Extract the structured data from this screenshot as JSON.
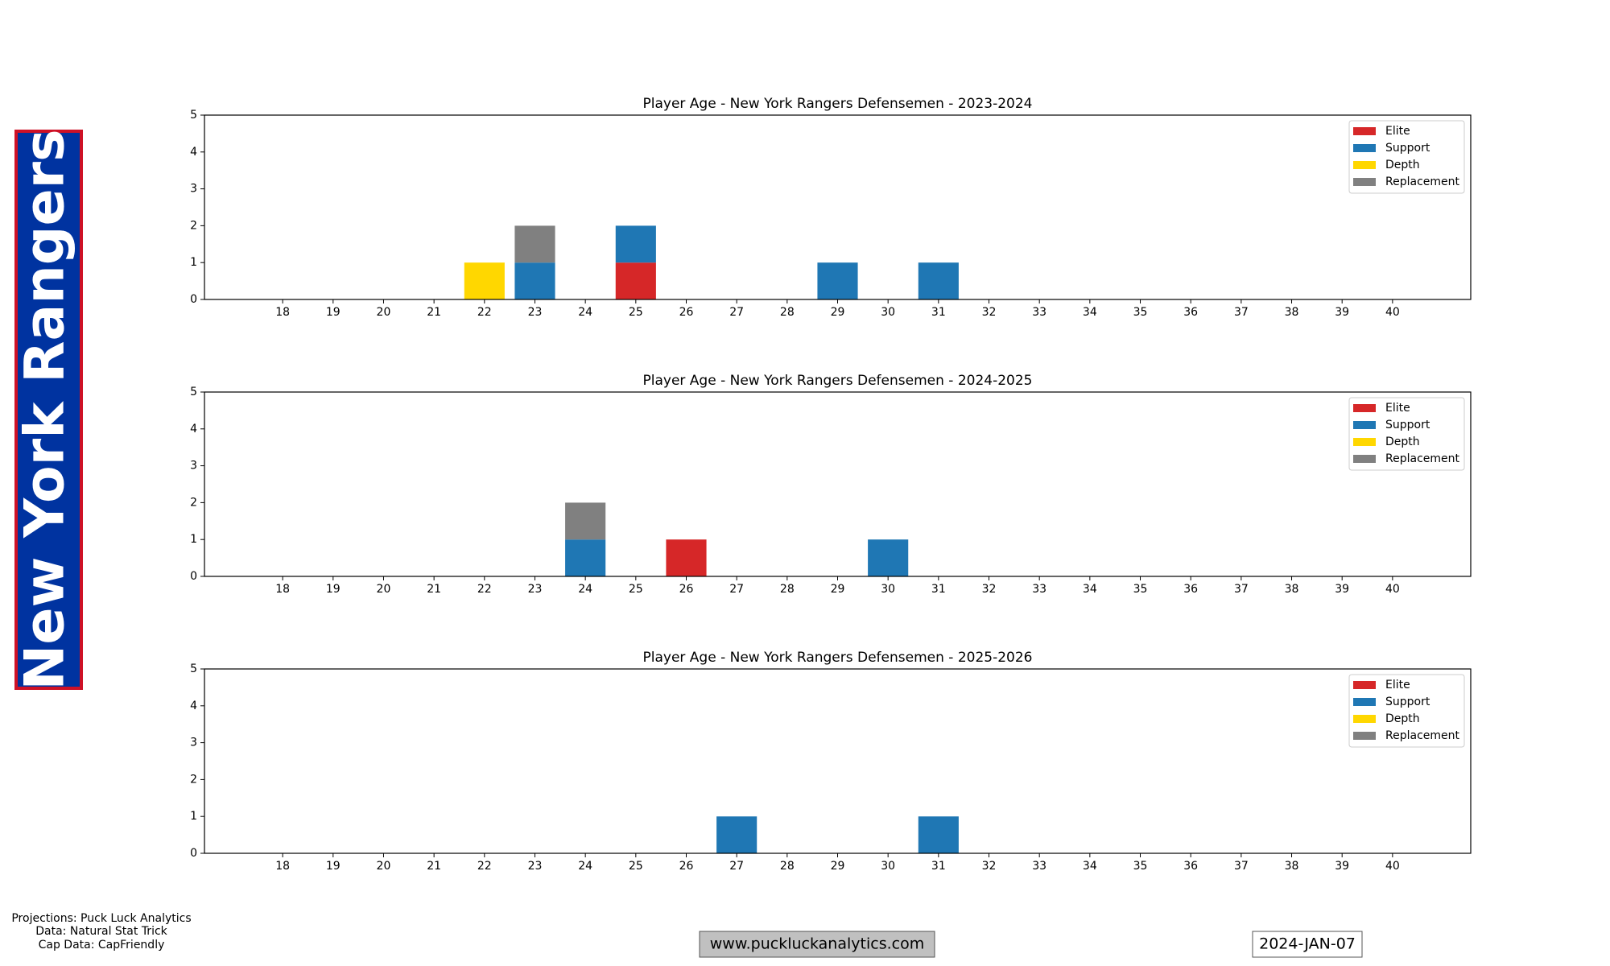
{
  "banner": "New York Rangers",
  "chart_data": [
    {
      "type": "bar",
      "stacked": true,
      "title": "Player Age - New York Rangers Defensemen - 2023-2024",
      "x": [
        18,
        19,
        20,
        21,
        22,
        23,
        24,
        25,
        26,
        27,
        28,
        29,
        30,
        31,
        32,
        33,
        34,
        35,
        36,
        37,
        38,
        39,
        40
      ],
      "xlim": [
        16.45,
        41.55
      ],
      "xticks": [
        18,
        19,
        20,
        21,
        22,
        23,
        24,
        25,
        26,
        27,
        28,
        29,
        30,
        31,
        32,
        33,
        34,
        35,
        36,
        37,
        38,
        39,
        40
      ],
      "ylim": [
        0,
        5
      ],
      "yticks": [
        0,
        1,
        2,
        3,
        4,
        5
      ],
      "legend": "upper right",
      "series": [
        {
          "name": "Elite",
          "color": "#d62728",
          "values": [
            0,
            0,
            0,
            0,
            0,
            0,
            0,
            1,
            0,
            0,
            0,
            0,
            0,
            0,
            0,
            0,
            0,
            0,
            0,
            0,
            0,
            0,
            0
          ]
        },
        {
          "name": "Support",
          "color": "#1f77b4",
          "values": [
            0,
            0,
            0,
            0,
            0,
            1,
            0,
            1,
            0,
            0,
            0,
            1,
            0,
            1,
            0,
            0,
            0,
            0,
            0,
            0,
            0,
            0,
            0
          ]
        },
        {
          "name": "Depth",
          "color": "#ffd700",
          "values": [
            0,
            0,
            0,
            0,
            1,
            0,
            0,
            0,
            0,
            0,
            0,
            0,
            0,
            0,
            0,
            0,
            0,
            0,
            0,
            0,
            0,
            0,
            0
          ]
        },
        {
          "name": "Replacement",
          "color": "#808080",
          "values": [
            0,
            0,
            0,
            0,
            0,
            1,
            0,
            0,
            0,
            0,
            0,
            0,
            0,
            0,
            0,
            0,
            0,
            0,
            0,
            0,
            0,
            0,
            0
          ]
        }
      ]
    },
    {
      "type": "bar",
      "stacked": true,
      "title": "Player Age - New York Rangers Defensemen - 2024-2025",
      "x": [
        18,
        19,
        20,
        21,
        22,
        23,
        24,
        25,
        26,
        27,
        28,
        29,
        30,
        31,
        32,
        33,
        34,
        35,
        36,
        37,
        38,
        39,
        40
      ],
      "xlim": [
        16.45,
        41.55
      ],
      "xticks": [
        18,
        19,
        20,
        21,
        22,
        23,
        24,
        25,
        26,
        27,
        28,
        29,
        30,
        31,
        32,
        33,
        34,
        35,
        36,
        37,
        38,
        39,
        40
      ],
      "ylim": [
        0,
        5
      ],
      "yticks": [
        0,
        1,
        2,
        3,
        4,
        5
      ],
      "legend": "upper right",
      "series": [
        {
          "name": "Elite",
          "color": "#d62728",
          "values": [
            0,
            0,
            0,
            0,
            0,
            0,
            0,
            0,
            1,
            0,
            0,
            0,
            0,
            0,
            0,
            0,
            0,
            0,
            0,
            0,
            0,
            0,
            0
          ]
        },
        {
          "name": "Support",
          "color": "#1f77b4",
          "values": [
            0,
            0,
            0,
            0,
            0,
            0,
            1,
            0,
            0,
            0,
            0,
            0,
            1,
            0,
            0,
            0,
            0,
            0,
            0,
            0,
            0,
            0,
            0
          ]
        },
        {
          "name": "Depth",
          "color": "#ffd700",
          "values": [
            0,
            0,
            0,
            0,
            0,
            0,
            0,
            0,
            0,
            0,
            0,
            0,
            0,
            0,
            0,
            0,
            0,
            0,
            0,
            0,
            0,
            0,
            0
          ]
        },
        {
          "name": "Replacement",
          "color": "#808080",
          "values": [
            0,
            0,
            0,
            0,
            0,
            0,
            1,
            0,
            0,
            0,
            0,
            0,
            0,
            0,
            0,
            0,
            0,
            0,
            0,
            0,
            0,
            0,
            0
          ]
        }
      ]
    },
    {
      "type": "bar",
      "stacked": true,
      "title": "Player Age - New York Rangers Defensemen - 2025-2026",
      "x": [
        18,
        19,
        20,
        21,
        22,
        23,
        24,
        25,
        26,
        27,
        28,
        29,
        30,
        31,
        32,
        33,
        34,
        35,
        36,
        37,
        38,
        39,
        40
      ],
      "xlim": [
        16.45,
        41.55
      ],
      "xticks": [
        18,
        19,
        20,
        21,
        22,
        23,
        24,
        25,
        26,
        27,
        28,
        29,
        30,
        31,
        32,
        33,
        34,
        35,
        36,
        37,
        38,
        39,
        40
      ],
      "ylim": [
        0,
        5
      ],
      "yticks": [
        0,
        1,
        2,
        3,
        4,
        5
      ],
      "legend": "upper right",
      "series": [
        {
          "name": "Elite",
          "color": "#d62728",
          "values": [
            0,
            0,
            0,
            0,
            0,
            0,
            0,
            0,
            0,
            0,
            0,
            0,
            0,
            0,
            0,
            0,
            0,
            0,
            0,
            0,
            0,
            0,
            0
          ]
        },
        {
          "name": "Support",
          "color": "#1f77b4",
          "values": [
            0,
            0,
            0,
            0,
            0,
            0,
            0,
            0,
            0,
            1,
            0,
            0,
            0,
            1,
            0,
            0,
            0,
            0,
            0,
            0,
            0,
            0,
            0
          ]
        },
        {
          "name": "Depth",
          "color": "#ffd700",
          "values": [
            0,
            0,
            0,
            0,
            0,
            0,
            0,
            0,
            0,
            0,
            0,
            0,
            0,
            0,
            0,
            0,
            0,
            0,
            0,
            0,
            0,
            0,
            0
          ]
        },
        {
          "name": "Replacement",
          "color": "#808080",
          "values": [
            0,
            0,
            0,
            0,
            0,
            0,
            0,
            0,
            0,
            0,
            0,
            0,
            0,
            0,
            0,
            0,
            0,
            0,
            0,
            0,
            0,
            0,
            0
          ]
        }
      ]
    }
  ],
  "footer": {
    "credits": [
      "Projections: Puck Luck Analytics",
      "Data: Natural Stat Trick",
      "Cap Data: CapFriendly"
    ],
    "website": "www.puckluckanalytics.com",
    "date": "2024-JAN-07"
  }
}
